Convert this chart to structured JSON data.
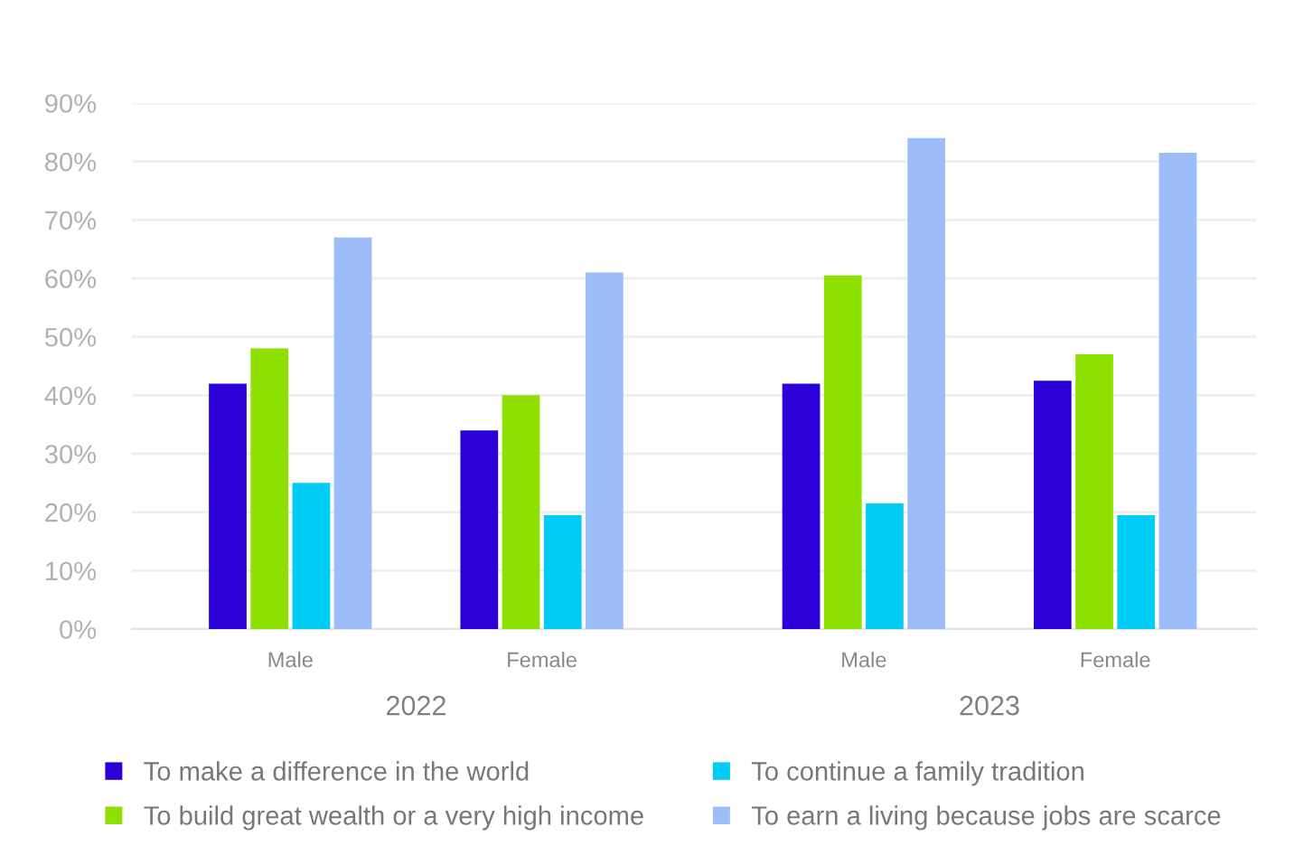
{
  "chart_data": {
    "type": "bar",
    "categories": [
      "Male",
      "Female",
      "Male",
      "Female"
    ],
    "annotations": [
      "2022",
      "2023"
    ],
    "series": [
      {
        "name": "To make a difference in the world",
        "color": "#2b00d9",
        "values": [
          42,
          34,
          42,
          42.5
        ]
      },
      {
        "name": "To build great wealth or a very high income",
        "color": "#8ee000",
        "values": [
          48,
          40,
          60.5,
          47
        ]
      },
      {
        "name": "To continue a family tradition",
        "color": "#00ccf5",
        "values": [
          25,
          19.5,
          21.5,
          19.5
        ]
      },
      {
        "name": "To earn a living because jobs are scarce",
        "color": "#9dbcfa",
        "values": [
          67,
          61,
          84,
          81.5
        ]
      }
    ],
    "ylim": [
      0,
      90
    ],
    "yticks": [
      {
        "value": 0,
        "label": "0%"
      },
      {
        "value": 10,
        "label": "10%"
      },
      {
        "value": 20,
        "label": "20%"
      },
      {
        "value": 30,
        "label": "30%"
      },
      {
        "value": 40,
        "label": "40%"
      },
      {
        "value": 50,
        "label": "50%"
      },
      {
        "value": 60,
        "label": "60%"
      },
      {
        "value": 70,
        "label": "70%"
      },
      {
        "value": 80,
        "label": "80%"
      },
      {
        "value": 90,
        "label": "90%"
      }
    ],
    "grid": "y",
    "legend": "bottom"
  }
}
